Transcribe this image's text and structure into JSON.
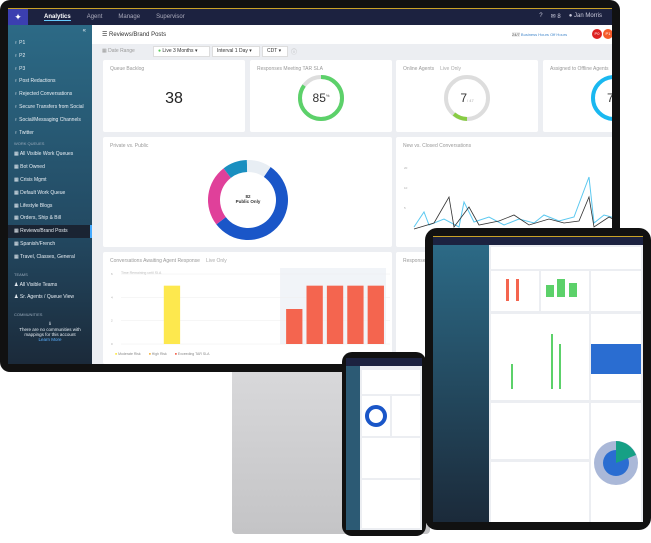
{
  "nav": {
    "tabs": [
      "Analytics",
      "Agent",
      "Manage",
      "Supervisor"
    ],
    "active": 0,
    "user": "Jan Morris",
    "notif_count": "8"
  },
  "sidebar": {
    "tags": [
      "P1",
      "P2",
      "P3",
      "Post Redactions",
      "Rejected Conversations",
      "Secure Transfers from Social",
      "Social/Messaging Channels",
      "Twitter"
    ],
    "work_queues_label": "WORK QUEUES",
    "queues": [
      "All Visible Work Queues",
      "Bot Owned",
      "Crisis Mgmt",
      "Default Work Queue",
      "Lifestyle Blogs",
      "Orders, Ship & Bill",
      "Reviews/Brand Posts",
      "Spanish/French",
      "Travel, Classes, General"
    ],
    "selected_queue": 6,
    "teams_label": "TEAMS",
    "teams": [
      "All Visible Teams",
      "Sr. Agents / Queue View"
    ],
    "communities_label": "COMMUNITIES",
    "communities_msg": "There are no communities with mappings for this account",
    "learn_more": "Learn More"
  },
  "header": {
    "title": "Reviews/Brand Posts",
    "hours": [
      "24/7",
      "Business Hours",
      "Off Hours"
    ],
    "badges": [
      "P0",
      "P1"
    ]
  },
  "filters": {
    "date_range": "Date Range",
    "live": "Live 3 Months",
    "interval": "Interval 1 Day",
    "timezone": "CDT"
  },
  "cards": {
    "queue_backlog": {
      "title": "Queue Backlog",
      "value": "38"
    },
    "sla": {
      "title": "Responses Meeting TAR SLA",
      "value": "85",
      "unit": "%",
      "percent": 85
    },
    "online_agents": {
      "title": "Online Agents",
      "tag": "Live Only",
      "value": "7",
      "total": "/ 47"
    },
    "offline_agents": {
      "title": "Assigned to Offline Agents",
      "value": "7"
    },
    "private_public": {
      "title": "Private vs. Public",
      "value": "82",
      "label": "Public Only"
    },
    "new_closed": {
      "title": "New vs. Closed Conversations",
      "yticks": [
        "20",
        "10",
        "5"
      ]
    },
    "awaiting": {
      "title": "Conversations Awaiting Agent Response",
      "tag": "Live Only",
      "sublabel": "Time Remaining until SLA",
      "legend": [
        "Moderate Risk",
        "High Risk",
        "Exceeding TAR SLA"
      ]
    },
    "responses": {
      "title": "Responses"
    }
  },
  "chart_data": [
    {
      "type": "pie",
      "title": "Private vs. Public",
      "values": [
        55,
        25,
        10,
        10
      ],
      "colors": [
        "#1a56c8",
        "#e0409a",
        "#1a8fc0",
        "#e8eef4"
      ]
    },
    {
      "type": "bar",
      "title": "Conversations Awaiting Agent Response",
      "yticks": [
        "6",
        "4",
        "2",
        "0"
      ],
      "ylim": [
        0,
        6
      ],
      "series": [
        {
          "name": "Moderate Risk",
          "color": "#fde84e",
          "values": [
            0,
            0,
            5,
            0,
            0,
            0,
            0,
            0,
            0,
            0,
            0,
            0,
            0
          ]
        },
        {
          "name": "High Risk",
          "color": "#f5b84a",
          "values": [
            0,
            0,
            0,
            0,
            0,
            0,
            0,
            0,
            0,
            0,
            0,
            0,
            0
          ]
        },
        {
          "name": "Exceeding TAR SLA",
          "color": "#f4654f",
          "values": [
            0,
            0,
            0,
            0,
            0,
            0,
            0,
            0,
            3,
            5,
            5,
            5,
            5
          ]
        }
      ]
    }
  ],
  "colors": {
    "nav": "#1c2240",
    "accent": "#3b3fb0",
    "sla_green": "#5cd16a",
    "cyan": "#1ab8f0"
  }
}
